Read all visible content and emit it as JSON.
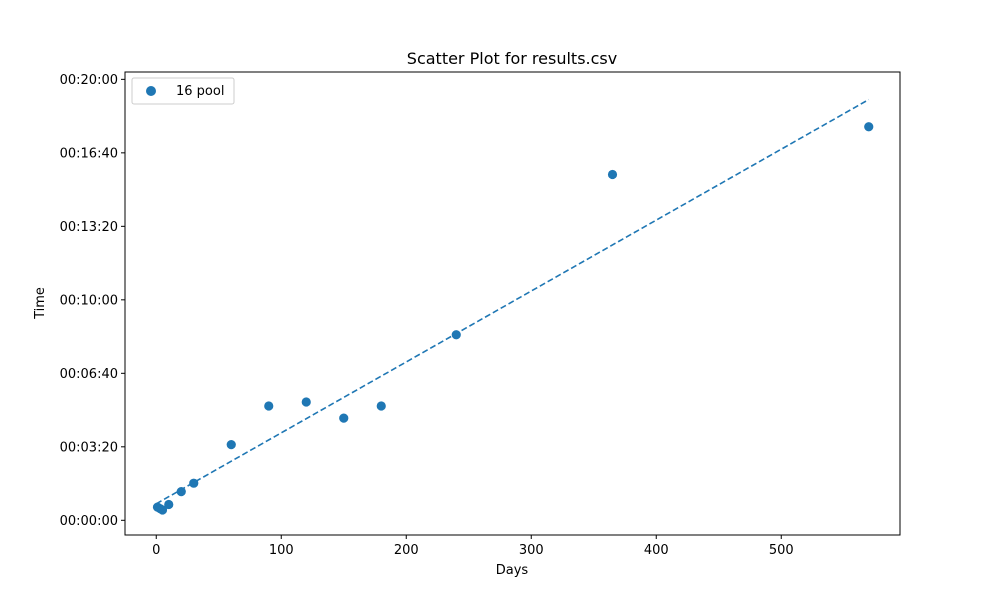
{
  "chart_data": {
    "type": "scatter",
    "title": "Scatter Plot for results.csv",
    "xlabel": "Days",
    "ylabel": "Time",
    "xlim": [
      -25,
      595
    ],
    "ylim_seconds": [
      -40,
      1220
    ],
    "x_ticks": [
      0,
      100,
      200,
      300,
      400,
      500
    ],
    "y_ticks": [
      {
        "seconds": 0,
        "label": "00:00:00"
      },
      {
        "seconds": 200,
        "label": "00:03:20"
      },
      {
        "seconds": 400,
        "label": "00:06:40"
      },
      {
        "seconds": 600,
        "label": "00:10:00"
      },
      {
        "seconds": 800,
        "label": "00:13:20"
      },
      {
        "seconds": 1000,
        "label": "00:16:40"
      },
      {
        "seconds": 1200,
        "label": "00:20:00"
      }
    ],
    "grid": false,
    "legend_position": "top-left",
    "series": [
      {
        "name": "16 pool",
        "color": "#1f77b4",
        "points": [
          {
            "x": 1,
            "y": "00:00:36"
          },
          {
            "x": 3,
            "y": "00:00:32"
          },
          {
            "x": 5,
            "y": "00:00:28"
          },
          {
            "x": 10,
            "y": "00:00:43"
          },
          {
            "x": 20,
            "y": "00:01:18"
          },
          {
            "x": 30,
            "y": "00:01:41"
          },
          {
            "x": 60,
            "y": "00:03:26"
          },
          {
            "x": 90,
            "y": "00:05:11"
          },
          {
            "x": 120,
            "y": "00:05:22"
          },
          {
            "x": 150,
            "y": "00:04:38"
          },
          {
            "x": 180,
            "y": "00:05:11"
          },
          {
            "x": 240,
            "y": "00:08:25"
          },
          {
            "x": 365,
            "y": "00:15:41"
          },
          {
            "x": 570,
            "y": "00:17:51"
          }
        ]
      }
    ],
    "trendline": {
      "style": "dashed",
      "color": "#1f77b4",
      "x": [
        0,
        570
      ],
      "y": [
        "00:00:45",
        "00:19:05"
      ]
    }
  }
}
